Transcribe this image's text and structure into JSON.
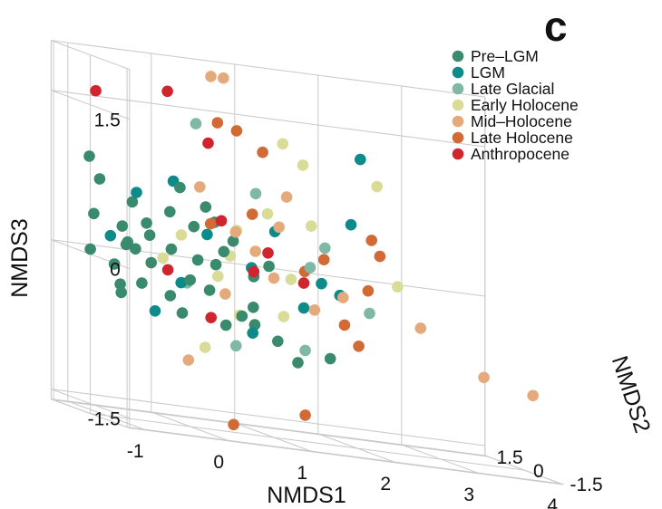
{
  "panel_label": "c",
  "chart_data": {
    "type": "scatter",
    "projection": "3d",
    "title": "",
    "grid": true,
    "legend_position": "top-right",
    "axes": {
      "x": {
        "label": "NMDS1",
        "ticks": [
          "-1",
          "0",
          "1",
          "2",
          "3",
          "4"
        ]
      },
      "y": {
        "label": "NMDS2",
        "ticks": [
          "1.5",
          "0",
          "-1.5"
        ]
      },
      "z": {
        "label": "NMDS3",
        "ticks": [
          "1.5",
          "0",
          "-1.5"
        ]
      }
    },
    "series": [
      {
        "name": "Pre–LGM",
        "color": "#3a8a6e",
        "points": [
          [
            -1.0,
            0.3,
            0.75
          ],
          [
            -1.1,
            0.2,
            0.4
          ],
          [
            -1.2,
            0.0,
            0.05
          ],
          [
            -1.0,
            -0.3,
            -0.05
          ],
          [
            -0.9,
            -0.2,
            -0.25
          ],
          [
            -0.8,
            0.1,
            -0.35
          ],
          [
            -0.7,
            0.4,
            0.3
          ],
          [
            -0.6,
            0.2,
            0.1
          ],
          [
            -0.5,
            -0.1,
            0.0
          ],
          [
            -0.4,
            0.3,
            0.25
          ],
          [
            -0.3,
            -0.2,
            -0.3
          ],
          [
            -0.2,
            0.1,
            0.15
          ],
          [
            -0.1,
            0.5,
            0.5
          ],
          [
            0.0,
            -0.3,
            0.1
          ],
          [
            0.1,
            0.2,
            0.4
          ],
          [
            0.2,
            -0.1,
            -0.2
          ],
          [
            0.3,
            0.4,
            0.6
          ],
          [
            0.4,
            0.0,
            0.2
          ],
          [
            0.5,
            -0.4,
            -0.4
          ],
          [
            0.6,
            0.3,
            0.3
          ],
          [
            0.7,
            -0.2,
            0.0
          ],
          [
            0.8,
            0.1,
            -0.5
          ],
          [
            0.9,
            -0.5,
            -0.6
          ],
          [
            1.0,
            0.2,
            0.1
          ],
          [
            -0.9,
            -0.5,
            0.2
          ],
          [
            -0.7,
            -0.4,
            -0.2
          ],
          [
            -0.55,
            0.5,
            0.55
          ],
          [
            -0.35,
            0.6,
            0.35
          ],
          [
            -0.15,
            -0.5,
            -0.1
          ],
          [
            0.05,
            0.6,
            0.75
          ],
          [
            0.25,
            -0.6,
            -0.5
          ],
          [
            0.45,
            0.55,
            0.45
          ],
          [
            0.65,
            -0.35,
            -0.3
          ],
          [
            1.2,
            -0.3,
            -0.8
          ],
          [
            1.5,
            -0.6,
            -0.7
          ],
          [
            -1.05,
            0.55,
            0.95
          ],
          [
            -0.8,
            -0.1,
            0.15
          ],
          [
            -0.2,
            -0.35,
            -0.45
          ],
          [
            0.35,
            0.15,
            0.05
          ]
        ]
      },
      {
        "name": "LGM",
        "color": "#0d8a8a",
        "points": [
          [
            -0.9,
            0.2,
            0.2
          ],
          [
            -0.5,
            0.5,
            0.65
          ],
          [
            -0.2,
            -0.3,
            -0.15
          ],
          [
            0.2,
            0.0,
            0.35
          ],
          [
            0.6,
            -0.5,
            -0.55
          ],
          [
            1.1,
            0.3,
            0.45
          ],
          [
            1.3,
            -0.2,
            -0.25
          ],
          [
            2.3,
            0.9,
            1.25
          ],
          [
            2.1,
            0.6,
            0.6
          ],
          [
            1.6,
            0.1,
            0.0
          ],
          [
            0.0,
            0.7,
            0.8
          ],
          [
            -0.6,
            -0.6,
            -0.45
          ],
          [
            0.85,
            0.4,
            0.05
          ],
          [
            1.85,
            0.2,
            -0.1
          ]
        ]
      },
      {
        "name": "Late Glacial",
        "color": "#7fb8a4",
        "points": [
          [
            0.3,
            0.8,
            1.4
          ],
          [
            0.9,
            0.4,
            0.8
          ],
          [
            1.7,
            0.3,
            0.35
          ],
          [
            1.2,
            -0.6,
            -0.65
          ],
          [
            0.4,
            -0.5,
            -0.7
          ],
          [
            -0.1,
            -0.2,
            -0.15
          ],
          [
            2.0,
            -0.5,
            -0.2
          ],
          [
            1.45,
            0.05,
            0.15
          ]
        ]
      },
      {
        "name": "Early Holocene",
        "color": "#d9dc96",
        "points": [
          [
            1.4,
            1.0,
            1.3
          ],
          [
            1.7,
            1.2,
            1.1
          ],
          [
            2.5,
            0.9,
            1.0
          ],
          [
            2.6,
            0.4,
            0.05
          ],
          [
            1.1,
            0.6,
            0.6
          ],
          [
            0.7,
            0.5,
            0.4
          ],
          [
            0.3,
            -0.1,
            -0.05
          ],
          [
            -0.3,
            0.1,
            0.05
          ],
          [
            0.5,
            -0.3,
            -0.4
          ],
          [
            1.0,
            -0.4,
            -0.35
          ],
          [
            0.0,
            -0.6,
            -0.75
          ],
          [
            1.55,
            0.35,
            0.55
          ],
          [
            0.55,
            0.25,
            0.15
          ],
          [
            1.25,
            0.15,
            0.0
          ],
          [
            -0.05,
            0.2,
            0.3
          ]
        ]
      },
      {
        "name": "Mid–Holocene",
        "color": "#e5aa7c",
        "points": [
          [
            0.45,
            0.7,
            1.9
          ],
          [
            0.6,
            0.7,
            1.9
          ],
          [
            3.4,
            -0.4,
            -0.7
          ],
          [
            3.9,
            -0.7,
            -0.8
          ],
          [
            2.7,
            -0.2,
            -0.3
          ],
          [
            1.8,
            -0.1,
            -0.1
          ],
          [
            1.4,
            -0.3,
            -0.25
          ],
          [
            0.2,
            0.3,
            0.8
          ],
          [
            -0.2,
            -0.6,
            -0.9
          ],
          [
            1.0,
            0.0,
            0.0
          ],
          [
            0.6,
            0.2,
            0.4
          ],
          [
            1.3,
            0.5,
            0.8
          ],
          [
            0.3,
            -0.4,
            -0.2
          ],
          [
            0.75,
            -0.1,
            0.25
          ],
          [
            1.15,
            0.3,
            0.5
          ]
        ]
      },
      {
        "name": "Late Holocene",
        "color": "#d26a36",
        "points": [
          [
            0.7,
            0.5,
            1.4
          ],
          [
            0.5,
            0.6,
            1.45
          ],
          [
            1.1,
            0.8,
            1.2
          ],
          [
            2.2,
            0.1,
            0.5
          ],
          [
            2.3,
            0.1,
            0.35
          ],
          [
            2.1,
            -0.1,
            0.0
          ],
          [
            0.4,
            -0.4,
            -1.5
          ],
          [
            1.2,
            -0.6,
            -1.3
          ],
          [
            1.6,
            0.0,
            0.25
          ],
          [
            0.8,
            0.2,
            0.6
          ],
          [
            1.7,
            -0.5,
            -0.35
          ],
          [
            1.9,
            -0.4,
            -0.55
          ],
          [
            0.3,
            0.2,
            0.45
          ],
          [
            1.4,
            0.1,
            0.1
          ]
        ]
      },
      {
        "name": "Anthropocene",
        "color": "#d0252e",
        "points": [
          [
            -0.9,
            0.8,
            1.6
          ],
          [
            -0.1,
            0.6,
            1.7
          ],
          [
            0.3,
            0.3,
            1.25
          ],
          [
            0.4,
            0.1,
            0.5
          ],
          [
            0.9,
            -0.1,
            0.25
          ],
          [
            1.3,
            -0.2,
            0.0
          ],
          [
            0.1,
            -0.5,
            -0.45
          ],
          [
            -0.3,
            -0.1,
            -0.05
          ],
          [
            0.7,
            -0.2,
            0.05
          ]
        ]
      }
    ]
  }
}
